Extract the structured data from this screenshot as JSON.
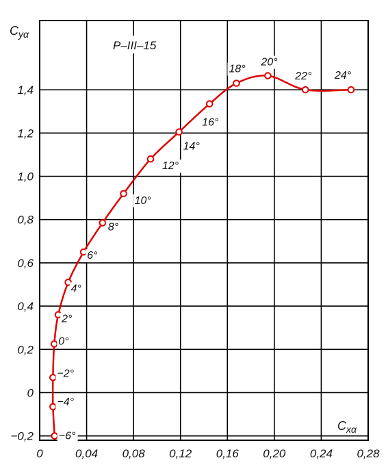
{
  "chart_data": {
    "type": "line",
    "title": "P–III–15",
    "xlabel_main": "C",
    "xlabel_sub": "xα",
    "ylabel_main": "C",
    "ylabel_sub": "yα",
    "xlim": [
      0,
      0.28
    ],
    "ylim": [
      -0.22,
      1.72
    ],
    "x_ticks": [
      0,
      0.04,
      0.08,
      0.12,
      0.16,
      0.2,
      0.24,
      0.28
    ],
    "x_tick_labels": [
      "0",
      "0,04",
      "0,08",
      "0,12",
      "0,16",
      "0,20",
      "0,24",
      "0,28"
    ],
    "y_ticks": [
      -0.2,
      0,
      0.2,
      0.4,
      0.6,
      0.8,
      1.0,
      1.2,
      1.4
    ],
    "y_tick_labels": [
      "−0,2",
      "0",
      "0,2",
      "0,4",
      "0,6",
      "0,8",
      "1,0",
      "1,2",
      "1,4"
    ],
    "grid": true,
    "color": "#e00000",
    "series": [
      {
        "points": [
          {
            "x": 0.0127,
            "y": -0.2,
            "label": "−6°"
          },
          {
            "x": 0.0113,
            "y": -0.065,
            "label": "−4°"
          },
          {
            "x": 0.0113,
            "y": 0.07,
            "label": "−2°"
          },
          {
            "x": 0.0124,
            "y": 0.225,
            "label": "0°"
          },
          {
            "x": 0.0158,
            "y": 0.36,
            "label": "2°"
          },
          {
            "x": 0.0243,
            "y": 0.51,
            "label": "4°"
          },
          {
            "x": 0.0374,
            "y": 0.65,
            "label": "6°"
          },
          {
            "x": 0.0536,
            "y": 0.785,
            "label": "8°"
          },
          {
            "x": 0.0715,
            "y": 0.92,
            "label": "10°"
          },
          {
            "x": 0.0945,
            "y": 1.08,
            "label": "12°"
          },
          {
            "x": 0.1188,
            "y": 1.205,
            "label": "14°"
          },
          {
            "x": 0.1448,
            "y": 1.335,
            "label": "16°"
          },
          {
            "x": 0.1677,
            "y": 1.43,
            "label": "18°"
          },
          {
            "x": 0.1945,
            "y": 1.465,
            "label": "20°"
          },
          {
            "x": 0.2265,
            "y": 1.4,
            "label": "22°"
          },
          {
            "x": 0.2654,
            "y": 1.4,
            "label": "24°"
          }
        ]
      }
    ]
  }
}
